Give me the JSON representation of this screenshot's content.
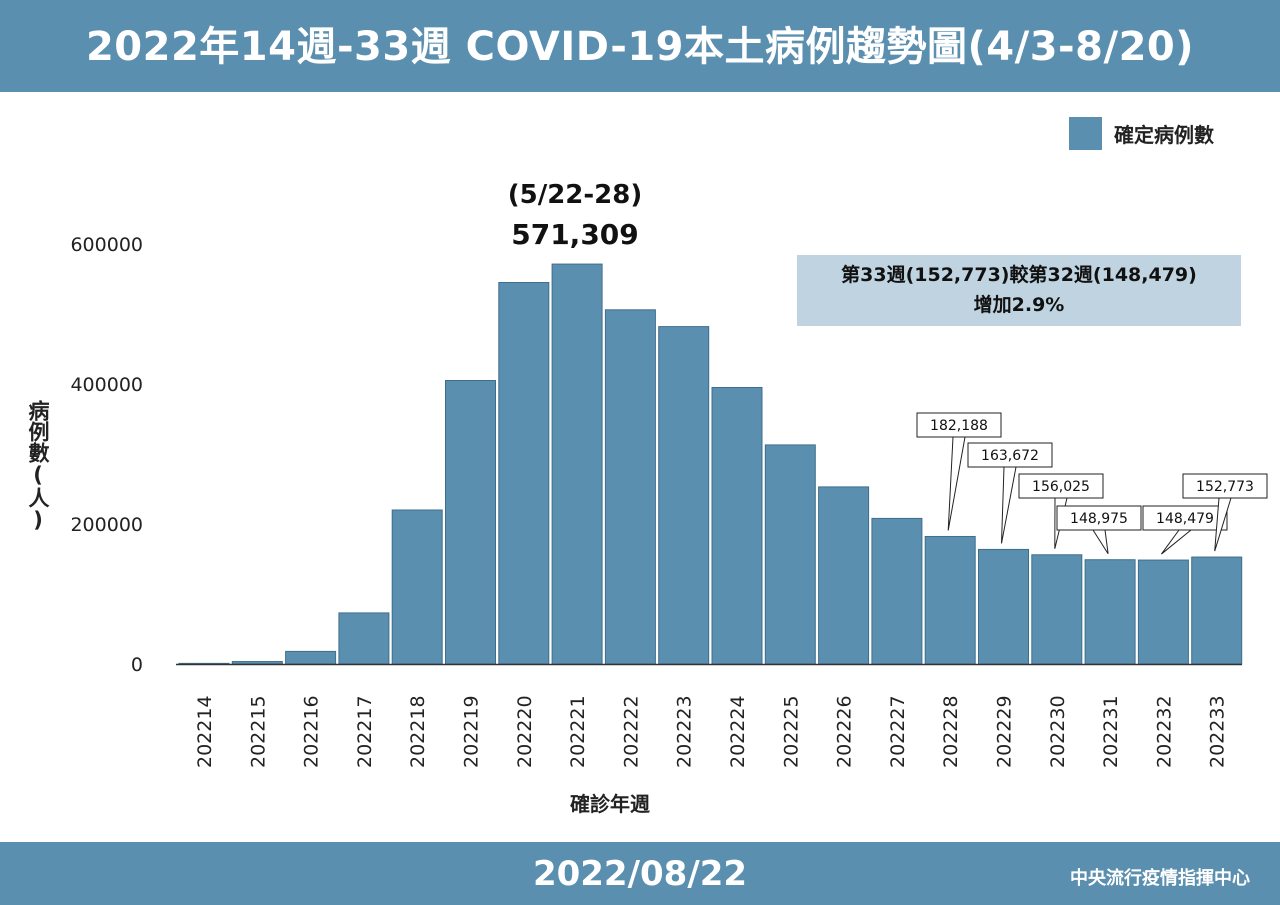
{
  "header": {
    "title": "2022年14週-33週 COVID-19本土病例趨勢圖(4/3-8/20)"
  },
  "footer": {
    "date": "2022/08/22",
    "org": "中央流行疫情指揮中心"
  },
  "legend": {
    "label": "確定病例數",
    "color": "#5b8fb0"
  },
  "peak": {
    "range": "(5/22-28)",
    "value": "571,309"
  },
  "compare_box": {
    "line1": "第33週(152,773)較第32週(148,479)",
    "line2": "增加2.9%"
  },
  "chart_data": {
    "type": "bar",
    "categories": [
      "202214",
      "202215",
      "202216",
      "202217",
      "202218",
      "202219",
      "202220",
      "202221",
      "202222",
      "202223",
      "202224",
      "202225",
      "202226",
      "202227",
      "202228",
      "202229",
      "202230",
      "202231",
      "202232",
      "202233"
    ],
    "values": [
      900,
      3500,
      18000,
      73000,
      220000,
      405000,
      545000,
      571309,
      506000,
      482000,
      395000,
      313000,
      253000,
      208000,
      182188,
      163672,
      156025,
      148975,
      148479,
      152773
    ],
    "xlabel": "確診年週",
    "ylabel": "病例數(人)",
    "ylim": [
      0,
      600000
    ],
    "yticks": [
      0,
      200000,
      400000,
      600000
    ],
    "ytick_labels": [
      "0",
      "200000",
      "400000",
      "600000"
    ],
    "annotations": [
      {
        "category": "202228",
        "label": "182,188"
      },
      {
        "category": "202229",
        "label": "163,672"
      },
      {
        "category": "202230",
        "label": "156,025"
      },
      {
        "category": "202231",
        "label": "148,975"
      },
      {
        "category": "202232",
        "label": "148,479"
      },
      {
        "category": "202233",
        "label": "152,773"
      }
    ],
    "bar_color": "#5b8fb0",
    "grid": false
  }
}
